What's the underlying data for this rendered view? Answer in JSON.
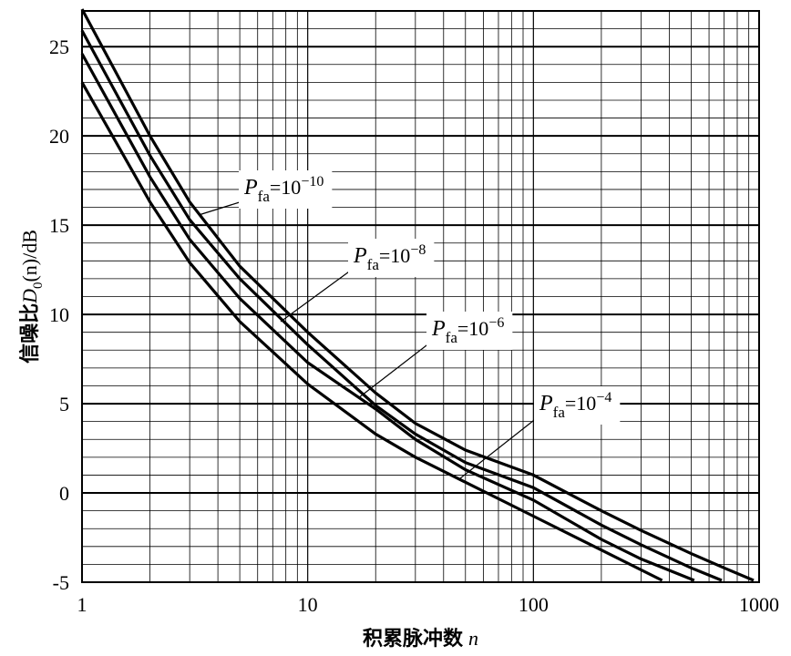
{
  "chart_data": {
    "type": "line",
    "x_label": {
      "text": "积累脉冲数",
      "variable": "n"
    },
    "y_label": {
      "prefix": "信噪比",
      "symbol": "D",
      "subscript": "0",
      "suffix": "(n)/dB"
    },
    "xscale": "log",
    "xlim": [
      1,
      1000
    ],
    "ylim": [
      -5,
      27
    ],
    "xticks": [
      1,
      10,
      100,
      1000
    ],
    "yticks": [
      -5,
      0,
      5,
      10,
      15,
      20,
      25
    ],
    "xminorticks": [
      2,
      3,
      4,
      5,
      6,
      7,
      8,
      9,
      20,
      30,
      40,
      50,
      60,
      70,
      80,
      90,
      200,
      300,
      400,
      500,
      600,
      700,
      800,
      900
    ],
    "yminorticks": [
      -4,
      -3,
      -2,
      -1,
      1,
      2,
      3,
      4,
      6,
      7,
      8,
      9,
      11,
      12,
      13,
      14,
      16,
      17,
      18,
      19,
      21,
      22,
      23,
      24,
      26
    ],
    "grid": true,
    "color": "#000000",
    "series": [
      {
        "label": {
          "symbol": "P",
          "subscript": "fa",
          "base": "=10",
          "exponent": "−10"
        },
        "color": "#000000",
        "x": [
          1,
          2,
          3,
          5,
          10,
          20,
          30,
          50,
          100,
          200,
          300,
          500,
          700,
          946
        ],
        "values": [
          27.1,
          20.0,
          16.3,
          12.7,
          9.0,
          5.6,
          3.9,
          2.4,
          1.0,
          -1.0,
          -2.1,
          -3.4,
          -4.2,
          -4.9
        ]
      },
      {
        "label": {
          "symbol": "P",
          "subscript": "fa",
          "base": "=10",
          "exponent": "−8"
        },
        "color": "#000000",
        "x": [
          1,
          2,
          3,
          5,
          10,
          20,
          30,
          50,
          100,
          200,
          300,
          500,
          683
        ],
        "values": [
          25.9,
          18.9,
          15.3,
          12.0,
          8.3,
          4.9,
          3.3,
          1.7,
          0.3,
          -1.8,
          -2.9,
          -4.2,
          -4.9
        ]
      },
      {
        "label": {
          "symbol": "P",
          "subscript": "fa",
          "base": "=10",
          "exponent": "−6"
        },
        "color": "#000000",
        "x": [
          1,
          2,
          3,
          5,
          10,
          20,
          30,
          50,
          100,
          200,
          300,
          516
        ],
        "values": [
          24.6,
          17.7,
          14.2,
          10.9,
          7.3,
          4.7,
          3.0,
          1.3,
          -0.4,
          -2.6,
          -3.7,
          -4.9
        ]
      },
      {
        "label": {
          "symbol": "P",
          "subscript": "fa",
          "base": "=10",
          "exponent": "−4"
        },
        "color": "#000000",
        "x": [
          1,
          2,
          3,
          5,
          10,
          20,
          30,
          50,
          100,
          200,
          372
        ],
        "values": [
          23.0,
          16.3,
          12.9,
          9.6,
          6.1,
          3.3,
          2.0,
          0.6,
          -1.3,
          -3.2,
          -4.9
        ]
      }
    ]
  }
}
